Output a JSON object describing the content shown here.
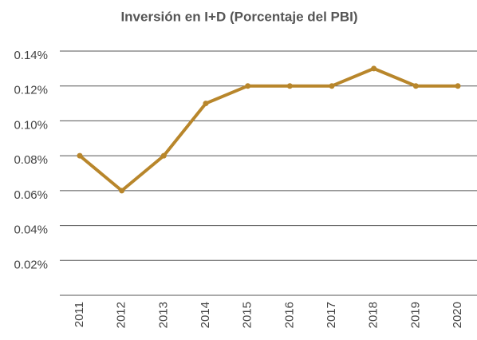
{
  "chart_data": {
    "type": "line",
    "title": "Inversión en I+D (Porcentaje del PBI)",
    "categories": [
      "2011",
      "2012",
      "2013",
      "2014",
      "2015",
      "2016",
      "2017",
      "2018",
      "2019",
      "2020"
    ],
    "series": [
      {
        "color": "#b8862b",
        "values": [
          0.08,
          0.06,
          0.08,
          0.11,
          0.12,
          0.12,
          0.12,
          0.13,
          0.12,
          0.12
        ]
      }
    ],
    "ylim": [
      0,
      0.14
    ],
    "yticks": [
      {
        "value": 0.02,
        "label": "0.02%"
      },
      {
        "value": 0.04,
        "label": "0.04%"
      },
      {
        "value": 0.06,
        "label": "0.06%"
      },
      {
        "value": 0.08,
        "label": "0.08%"
      },
      {
        "value": 0.1,
        "label": "0.10%"
      },
      {
        "value": 0.12,
        "label": "0.12%"
      },
      {
        "value": 0.14,
        "label": "0.14%"
      }
    ],
    "grid": true
  }
}
